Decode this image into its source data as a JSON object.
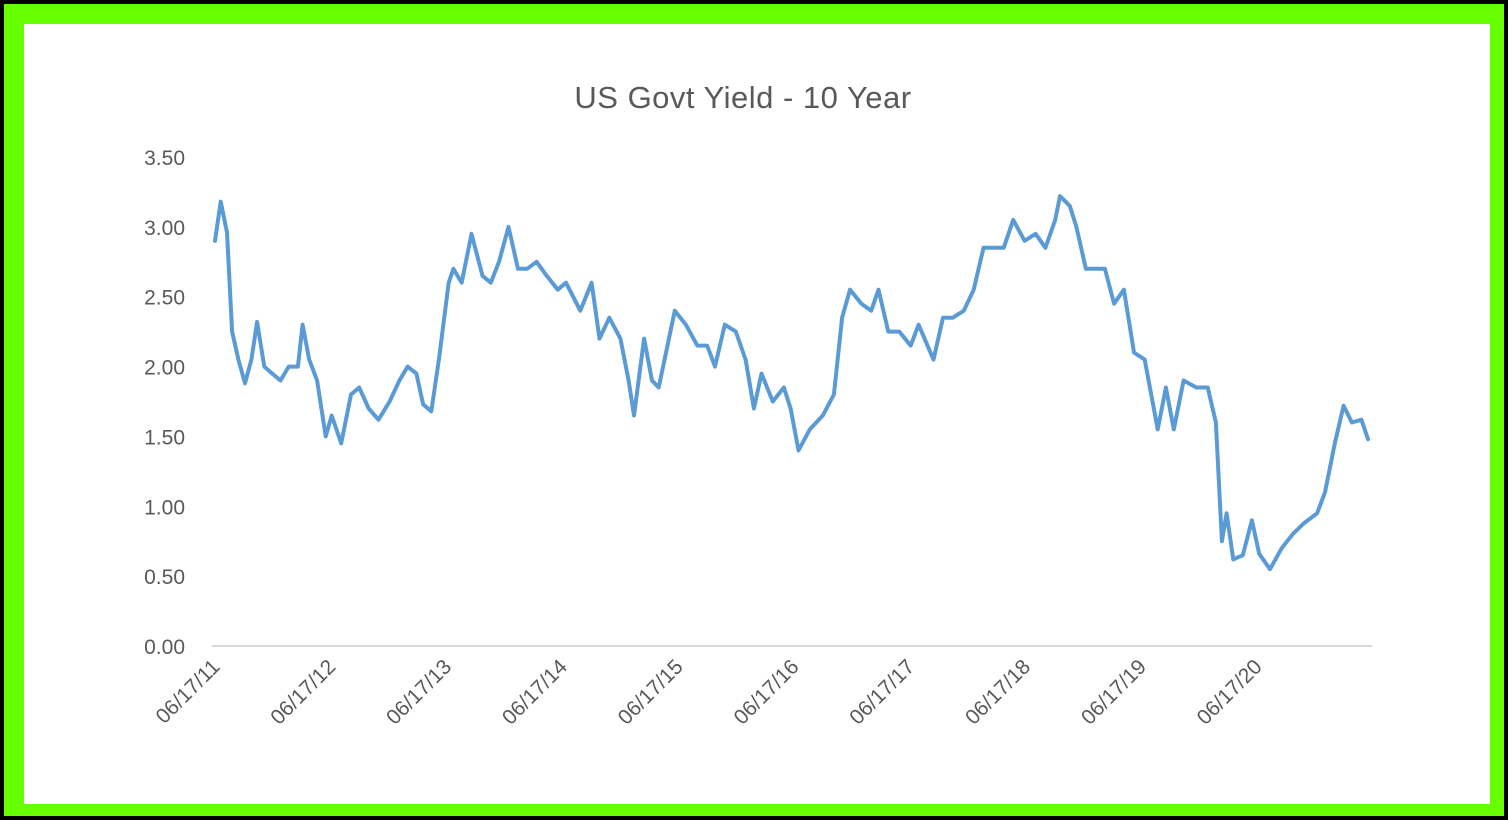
{
  "chart_data": {
    "type": "line",
    "title": "US Govt Yield - 10 Year",
    "xlabel": "",
    "ylabel": "",
    "x_tick_labels": [
      "06/17/11",
      "06/17/12",
      "06/17/13",
      "06/17/14",
      "06/17/15",
      "06/17/16",
      "06/17/17",
      "06/17/18",
      "06/17/19",
      "06/17/20"
    ],
    "y_tick_labels": [
      "0.00",
      "0.50",
      "1.00",
      "1.50",
      "2.00",
      "2.50",
      "3.00",
      "3.50"
    ],
    "ylim": [
      0,
      3.5
    ],
    "xlim": [
      "2011-06-17",
      "2021-06-10"
    ],
    "grid": false,
    "legend": "none",
    "line_color": "#5b9bd5",
    "series": [
      {
        "values": [
          [
            "2011-06-17",
            2.9
          ],
          [
            "2011-07-05",
            3.18
          ],
          [
            "2011-07-25",
            2.96
          ],
          [
            "2011-08-10",
            2.25
          ],
          [
            "2011-08-30",
            2.05
          ],
          [
            "2011-09-20",
            1.88
          ],
          [
            "2011-10-10",
            2.05
          ],
          [
            "2011-10-28",
            2.32
          ],
          [
            "2011-11-20",
            2.0
          ],
          [
            "2011-12-15",
            1.95
          ],
          [
            "2012-01-10",
            1.9
          ],
          [
            "2012-02-05",
            2.0
          ],
          [
            "2012-03-05",
            2.0
          ],
          [
            "2012-03-20",
            2.3
          ],
          [
            "2012-04-10",
            2.05
          ],
          [
            "2012-05-05",
            1.9
          ],
          [
            "2012-06-01",
            1.5
          ],
          [
            "2012-06-20",
            1.65
          ],
          [
            "2012-07-20",
            1.45
          ],
          [
            "2012-08-20",
            1.8
          ],
          [
            "2012-09-15",
            1.85
          ],
          [
            "2012-10-15",
            1.7
          ],
          [
            "2012-11-15",
            1.62
          ],
          [
            "2012-12-20",
            1.75
          ],
          [
            "2013-01-20",
            1.9
          ],
          [
            "2013-02-15",
            2.0
          ],
          [
            "2013-03-15",
            1.95
          ],
          [
            "2013-04-05",
            1.73
          ],
          [
            "2013-05-01",
            1.68
          ],
          [
            "2013-05-25",
            2.05
          ],
          [
            "2013-06-25",
            2.6
          ],
          [
            "2013-07-10",
            2.7
          ],
          [
            "2013-08-05",
            2.6
          ],
          [
            "2013-09-05",
            2.95
          ],
          [
            "2013-10-10",
            2.65
          ],
          [
            "2013-11-05",
            2.6
          ],
          [
            "2013-12-01",
            2.75
          ],
          [
            "2013-12-31",
            3.0
          ],
          [
            "2014-01-30",
            2.7
          ],
          [
            "2014-02-28",
            2.7
          ],
          [
            "2014-03-30",
            2.75
          ],
          [
            "2014-05-01",
            2.65
          ],
          [
            "2014-06-05",
            2.55
          ],
          [
            "2014-07-01",
            2.6
          ],
          [
            "2014-08-15",
            2.4
          ],
          [
            "2014-09-20",
            2.6
          ],
          [
            "2014-10-15",
            2.2
          ],
          [
            "2014-11-15",
            2.35
          ],
          [
            "2014-12-20",
            2.2
          ],
          [
            "2015-01-15",
            1.9
          ],
          [
            "2015-02-01",
            1.65
          ],
          [
            "2015-03-05",
            2.2
          ],
          [
            "2015-03-30",
            1.9
          ],
          [
            "2015-04-20",
            1.85
          ],
          [
            "2015-06-10",
            2.4
          ],
          [
            "2015-07-15",
            2.3
          ],
          [
            "2015-08-20",
            2.15
          ],
          [
            "2015-09-20",
            2.15
          ],
          [
            "2015-10-15",
            2.0
          ],
          [
            "2015-11-15",
            2.3
          ],
          [
            "2015-12-20",
            2.25
          ],
          [
            "2016-01-20",
            2.05
          ],
          [
            "2016-02-15",
            1.7
          ],
          [
            "2016-03-10",
            1.95
          ],
          [
            "2016-04-15",
            1.75
          ],
          [
            "2016-05-20",
            1.85
          ],
          [
            "2016-06-10",
            1.7
          ],
          [
            "2016-07-05",
            1.4
          ],
          [
            "2016-08-10",
            1.55
          ],
          [
            "2016-09-20",
            1.65
          ],
          [
            "2016-10-25",
            1.8
          ],
          [
            "2016-11-20",
            2.35
          ],
          [
            "2016-12-15",
            2.55
          ],
          [
            "2017-01-20",
            2.45
          ],
          [
            "2017-02-20",
            2.4
          ],
          [
            "2017-03-15",
            2.55
          ],
          [
            "2017-04-15",
            2.25
          ],
          [
            "2017-05-20",
            2.25
          ],
          [
            "2017-06-25",
            2.15
          ],
          [
            "2017-07-20",
            2.3
          ],
          [
            "2017-09-05",
            2.05
          ],
          [
            "2017-10-05",
            2.35
          ],
          [
            "2017-11-05",
            2.35
          ],
          [
            "2017-12-10",
            2.4
          ],
          [
            "2018-01-10",
            2.55
          ],
          [
            "2018-02-10",
            2.85
          ],
          [
            "2018-03-15",
            2.85
          ],
          [
            "2018-04-15",
            2.85
          ],
          [
            "2018-05-15",
            3.05
          ],
          [
            "2018-06-20",
            2.9
          ],
          [
            "2018-07-25",
            2.95
          ],
          [
            "2018-08-25",
            2.85
          ],
          [
            "2018-09-25",
            3.05
          ],
          [
            "2018-10-10",
            3.22
          ],
          [
            "2018-11-10",
            3.15
          ],
          [
            "2018-12-01",
            3.0
          ],
          [
            "2018-12-31",
            2.7
          ],
          [
            "2019-01-31",
            2.7
          ],
          [
            "2019-03-01",
            2.7
          ],
          [
            "2019-03-30",
            2.45
          ],
          [
            "2019-04-30",
            2.55
          ],
          [
            "2019-06-01",
            2.1
          ],
          [
            "2019-07-05",
            2.05
          ],
          [
            "2019-08-15",
            1.55
          ],
          [
            "2019-09-10",
            1.85
          ],
          [
            "2019-10-05",
            1.55
          ],
          [
            "2019-11-05",
            1.9
          ],
          [
            "2019-12-15",
            1.85
          ],
          [
            "2020-01-20",
            1.85
          ],
          [
            "2020-02-15",
            1.6
          ],
          [
            "2020-03-05",
            0.75
          ],
          [
            "2020-03-20",
            0.95
          ],
          [
            "2020-04-10",
            0.62
          ],
          [
            "2020-05-10",
            0.65
          ],
          [
            "2020-06-08",
            0.9
          ],
          [
            "2020-07-01",
            0.66
          ],
          [
            "2020-08-04",
            0.55
          ],
          [
            "2020-09-10",
            0.7
          ],
          [
            "2020-10-15",
            0.8
          ],
          [
            "2020-11-20",
            0.88
          ],
          [
            "2020-12-31",
            0.95
          ],
          [
            "2021-01-25",
            1.1
          ],
          [
            "2021-02-25",
            1.45
          ],
          [
            "2021-03-25",
            1.72
          ],
          [
            "2021-04-20",
            1.6
          ],
          [
            "2021-05-20",
            1.62
          ],
          [
            "2021-06-10",
            1.48
          ]
        ]
      }
    ]
  }
}
